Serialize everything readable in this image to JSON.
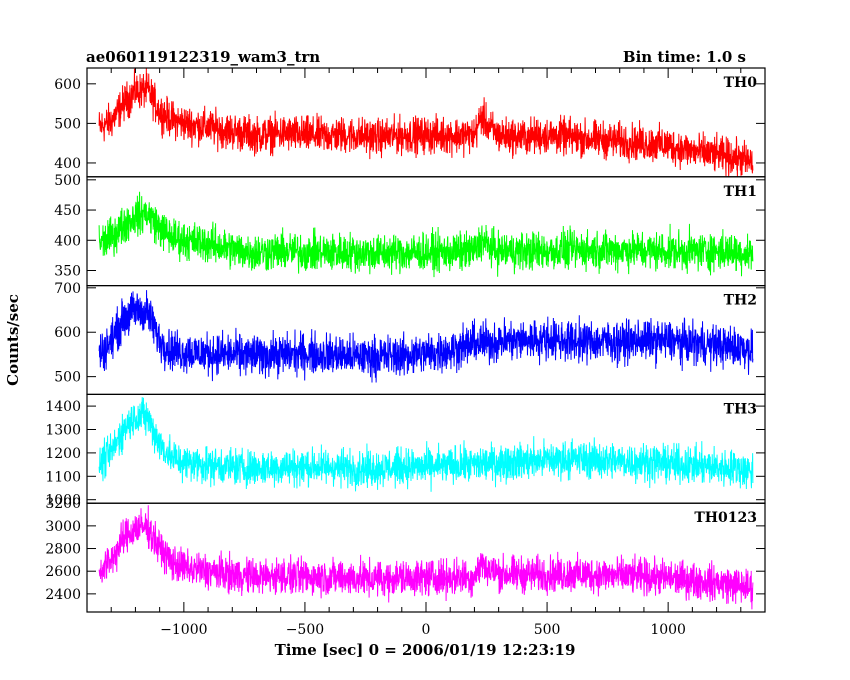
{
  "chart_data": {
    "type": "line",
    "title": "ae060119122319_wam3_trn",
    "subtitle": "Bin time: 1.0 s",
    "xlabel": "Time [sec] 0 = 2006/01/19 12:23:19",
    "ylabel": "Counts/sec",
    "xlim": [
      -1400,
      1400
    ],
    "x_range": [
      -1350,
      1350
    ],
    "x_ticks": [
      -1000,
      -500,
      0,
      500,
      1000
    ],
    "x_tick_labels": [
      "−1000",
      "−500",
      "0",
      "500",
      "1000"
    ],
    "grid": false,
    "series": [
      {
        "name": "TH0",
        "color": "#ff0000",
        "ylim": [
          365,
          640
        ],
        "yticks": [
          400,
          500,
          600
        ],
        "x": [
          -1350,
          -1300,
          -1250,
          -1200,
          -1150,
          -1100,
          -1050,
          -1000,
          -900,
          -800,
          -700,
          -600,
          -500,
          -400,
          -300,
          -200,
          -100,
          0,
          100,
          200,
          230,
          260,
          300,
          400,
          500,
          600,
          700,
          800,
          900,
          1000,
          1100,
          1200,
          1300,
          1350
        ],
        "y": [
          490,
          505,
          550,
          580,
          585,
          530,
          510,
          500,
          490,
          480,
          470,
          475,
          470,
          470,
          470,
          465,
          470,
          470,
          470,
          470,
          520,
          490,
          470,
          465,
          470,
          465,
          460,
          455,
          450,
          445,
          430,
          420,
          410,
          400
        ],
        "noise": 55
      },
      {
        "name": "TH1",
        "color": "#00ff00",
        "ylim": [
          325,
          505
        ],
        "yticks": [
          350,
          400,
          450,
          500
        ],
        "x": [
          -1350,
          -1300,
          -1250,
          -1200,
          -1150,
          -1100,
          -1050,
          -1000,
          -900,
          -800,
          -700,
          -600,
          -500,
          -400,
          -300,
          -200,
          -100,
          0,
          100,
          200,
          230,
          260,
          300,
          400,
          500,
          600,
          700,
          800,
          900,
          1000,
          1100,
          1200,
          1300,
          1350
        ],
        "y": [
          395,
          405,
          425,
          440,
          445,
          420,
          405,
          400,
          395,
          385,
          380,
          382,
          380,
          380,
          380,
          378,
          380,
          380,
          380,
          382,
          400,
          390,
          382,
          382,
          382,
          384,
          384,
          384,
          383,
          382,
          382,
          382,
          380,
          378
        ],
        "noise": 38
      },
      {
        "name": "TH2",
        "color": "#0000ff",
        "ylim": [
          460,
          705
        ],
        "yticks": [
          500,
          600,
          700
        ],
        "x": [
          -1350,
          -1300,
          -1250,
          -1200,
          -1150,
          -1100,
          -1050,
          -1000,
          -900,
          -800,
          -700,
          -600,
          -500,
          -400,
          -300,
          -200,
          -100,
          0,
          100,
          200,
          300,
          400,
          500,
          600,
          700,
          800,
          900,
          1000,
          1100,
          1200,
          1300,
          1350
        ],
        "y": [
          550,
          580,
          630,
          650,
          645,
          580,
          560,
          555,
          552,
          550,
          548,
          550,
          552,
          550,
          545,
          545,
          548,
          552,
          560,
          575,
          580,
          582,
          585,
          580,
          580,
          578,
          582,
          580,
          575,
          570,
          565,
          560
        ],
        "noise": 55
      },
      {
        "name": "TH3",
        "color": "#00ffff",
        "ylim": [
          985,
          1450
        ],
        "yticks": [
          1000,
          1100,
          1200,
          1300,
          1400
        ],
        "x": [
          -1350,
          -1300,
          -1250,
          -1200,
          -1150,
          -1100,
          -1050,
          -1000,
          -900,
          -800,
          -700,
          -600,
          -500,
          -400,
          -300,
          -200,
          -100,
          0,
          100,
          200,
          300,
          400,
          500,
          600,
          700,
          800,
          900,
          1000,
          1100,
          1200,
          1300,
          1350
        ],
        "y": [
          1150,
          1200,
          1300,
          1360,
          1350,
          1240,
          1180,
          1160,
          1150,
          1140,
          1135,
          1140,
          1140,
          1140,
          1135,
          1135,
          1140,
          1140,
          1145,
          1150,
          1160,
          1165,
          1170,
          1175,
          1170,
          1165,
          1160,
          1155,
          1145,
          1140,
          1130,
          1120
        ],
        "noise": 95
      },
      {
        "name": "TH0123",
        "color": "#ff00ff",
        "ylim": [
          2240,
          3200
        ],
        "yticks": [
          2400,
          2600,
          2800,
          3000,
          3200
        ],
        "x": [
          -1350,
          -1300,
          -1250,
          -1200,
          -1150,
          -1100,
          -1050,
          -1000,
          -900,
          -800,
          -700,
          -600,
          -500,
          -400,
          -300,
          -200,
          -100,
          0,
          100,
          200,
          230,
          260,
          300,
          400,
          500,
          600,
          700,
          800,
          900,
          1000,
          1100,
          1200,
          1300,
          1350
        ],
        "y": [
          2600,
          2700,
          2880,
          2980,
          2990,
          2800,
          2680,
          2630,
          2600,
          2570,
          2550,
          2560,
          2550,
          2550,
          2540,
          2530,
          2540,
          2545,
          2545,
          2550,
          2680,
          2600,
          2580,
          2570,
          2570,
          2575,
          2570,
          2560,
          2550,
          2540,
          2520,
          2500,
          2470,
          2450
        ],
        "noise": 190
      }
    ]
  }
}
